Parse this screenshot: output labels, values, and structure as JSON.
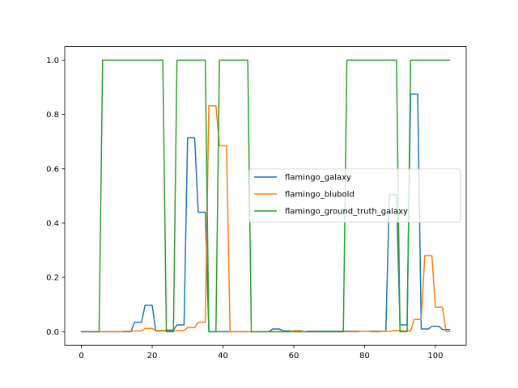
{
  "chart_data": {
    "type": "line",
    "title": "",
    "xlabel": "",
    "ylabel": "",
    "xlim": [
      -4.7,
      108.7
    ],
    "ylim": [
      -0.05,
      1.05
    ],
    "xticks": [
      0,
      20,
      40,
      60,
      80,
      100
    ],
    "yticks": [
      0.0,
      0.2,
      0.4,
      0.6,
      0.8,
      1.0
    ],
    "xtick_labels": [
      "0",
      "20",
      "40",
      "60",
      "80",
      "100"
    ],
    "ytick_labels": [
      "0.0",
      "0.2",
      "0.4",
      "0.6",
      "0.8",
      "1.0"
    ],
    "grid": false,
    "legend_position": "center-right",
    "series": [
      {
        "name": "flamingo_galaxy",
        "color": "#1f77b4",
        "x": [
          0,
          14,
          15,
          17,
          18,
          20,
          21,
          23,
          24,
          26,
          27,
          29,
          30,
          32,
          33,
          35,
          36,
          53,
          54,
          56,
          57,
          59,
          60,
          63,
          64,
          86,
          87,
          89,
          90,
          92,
          93,
          95,
          96,
          98,
          99,
          101,
          102,
          104
        ],
        "y": [
          0,
          0,
          0.035,
          0.035,
          0.098,
          0.098,
          0.003,
          0.003,
          0.006,
          0.006,
          0.025,
          0.025,
          0.714,
          0.714,
          0.44,
          0.44,
          0,
          0,
          0.01,
          0.01,
          0.003,
          0.003,
          0,
          0,
          0.002,
          0.002,
          0.505,
          0.505,
          0.025,
          0.025,
          0.875,
          0.875,
          0.01,
          0.01,
          0.02,
          0.02,
          0.008,
          0.008
        ]
      },
      {
        "name": "flamingo_blubold",
        "color": "#ff7f0e",
        "x": [
          0,
          11,
          12,
          14,
          15,
          17,
          18,
          20,
          21,
          23,
          24,
          26,
          27,
          29,
          30,
          32,
          33,
          35,
          36,
          38,
          39,
          41,
          42,
          59,
          60,
          62,
          63,
          78,
          79,
          81,
          82,
          84,
          85,
          87,
          88,
          90,
          91,
          93,
          94,
          96,
          97,
          99,
          100,
          102,
          103,
          104
        ],
        "y": [
          0,
          0,
          0.002,
          0.002,
          0.003,
          0.003,
          0.012,
          0.012,
          0.005,
          0.005,
          0.002,
          0.002,
          0.005,
          0.005,
          0.015,
          0.015,
          0.035,
          0.035,
          0.832,
          0.832,
          0.685,
          0.685,
          0,
          0,
          0.004,
          0.004,
          0,
          0,
          0.002,
          0.002,
          0,
          0,
          0.001,
          0.001,
          0.004,
          0.004,
          0.003,
          0.003,
          0.045,
          0.045,
          0.28,
          0.28,
          0.09,
          0.09,
          0.001,
          0.001
        ]
      },
      {
        "name": "flamingo_ground_truth_galaxy",
        "color": "#2ca02c",
        "x": [
          0,
          5,
          6,
          23,
          24,
          26,
          27,
          35,
          36,
          38,
          39,
          47,
          48,
          74,
          75,
          89,
          90,
          92,
          93,
          104
        ],
        "y": [
          0,
          0,
          1,
          1,
          0,
          0,
          1,
          1,
          0,
          0,
          1,
          1,
          0,
          0,
          1,
          1,
          0,
          0,
          1,
          1
        ]
      }
    ]
  }
}
